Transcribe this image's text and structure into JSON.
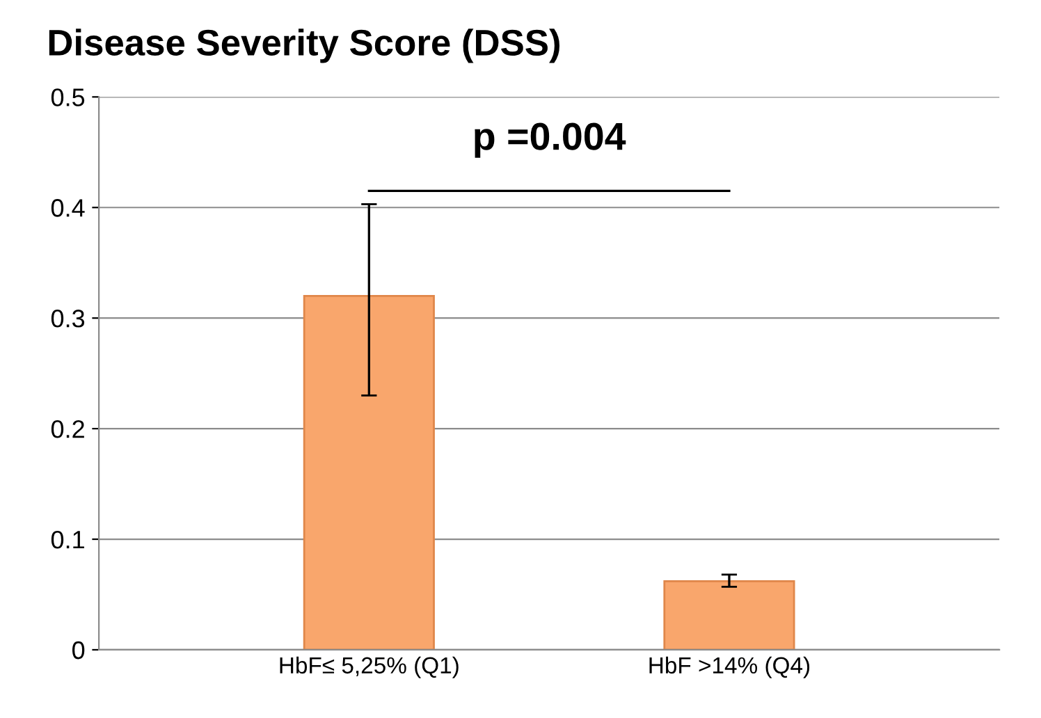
{
  "chart_data": {
    "type": "bar",
    "title": "Disease Severity Score (DSS)",
    "categories": [
      "HbF≤ 5,25% (Q1)",
      "HbF >14% (Q4)"
    ],
    "values": [
      0.32,
      0.062
    ],
    "errors": [
      [
        0.23,
        0.403
      ],
      [
        0.057,
        0.068
      ]
    ],
    "color": "#f9a66c",
    "ylim": [
      0,
      0.5
    ],
    "yticks": [
      0,
      0.1,
      0.2,
      0.3,
      0.4,
      0.5
    ],
    "grid": "y",
    "annotations": [
      "p =0.004"
    ]
  }
}
